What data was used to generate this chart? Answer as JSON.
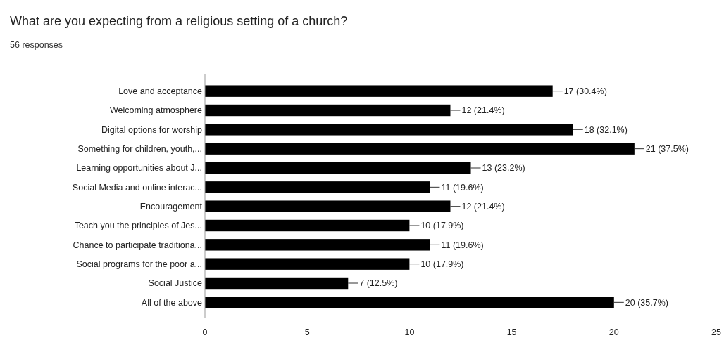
{
  "chart_data": {
    "type": "bar",
    "orientation": "horizontal",
    "title": "What are you expecting from a religious setting of a church?",
    "subtitle": "56 responses",
    "categories": [
      "Love and acceptance",
      "Welcoming atmosphere",
      "Digital options for worship",
      "Something for children, youth,...",
      "Learning opportunities about J...",
      "Social Media and online interac...",
      "Encouragement",
      "Teach you the principles of Jes...",
      "Chance to participate traditiona...",
      "Social programs for the poor a...",
      "Social Justice",
      "All of the above"
    ],
    "values": [
      17,
      12,
      18,
      21,
      13,
      11,
      12,
      10,
      11,
      10,
      7,
      20
    ],
    "value_labels": [
      "17 (30.4%)",
      "12 (21.4%)",
      "18 (32.1%)",
      "21 (37.5%)",
      "13 (23.2%)",
      "11 (19.6%)",
      "12 (21.4%)",
      "10 (17.9%)",
      "11 (19.6%)",
      "10 (17.9%)",
      "7 (12.5%)",
      "20 (35.7%)"
    ],
    "color": "#000000",
    "xlim": [
      0,
      25
    ],
    "xticks": [
      0,
      5,
      10,
      15,
      20,
      25
    ],
    "grid": false
  }
}
